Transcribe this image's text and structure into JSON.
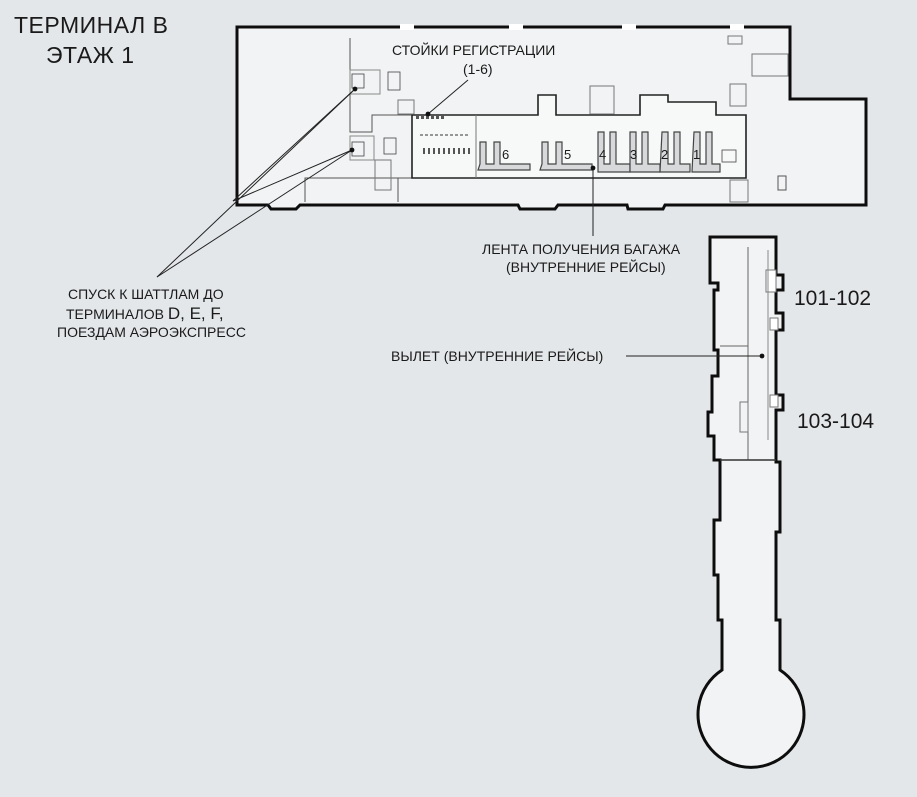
{
  "map": {
    "title_line1": "ТЕРМИНАЛ B",
    "title_line2": "ЭТАЖ 1"
  },
  "labels": {
    "checkin_line1": "СТОЙКИ РЕГИСТРАЦИИ",
    "checkin_line2": "(1-6)",
    "baggage_line1": "ЛЕНТА ПОЛУЧЕНИЯ БАГАЖА",
    "baggage_line2": "(ВНУТРЕННИЕ РЕЙСЫ)",
    "shuttle_line1": "СПУСК К ШАТТЛАМ ДО",
    "shuttle_line2_text": "ТЕРМИНАЛОВ ",
    "shuttle_line2_letters": "D, E, F,",
    "shuttle_line3": "ПОЕЗДАМ АЭРОЭКСПРЕСС",
    "departure": "ВЫЛЕТ (ВНУТРЕННИЕ РЕЙСЫ)"
  },
  "gates": {
    "gate_101_102": "101-102",
    "gate_103_104": "103-104"
  },
  "baggage_belts": [
    "6",
    "5",
    "4",
    "3",
    "2",
    "1"
  ],
  "colors": {
    "background": "#e4e7ea",
    "building_fill": "#f2f3f4",
    "wall": "#0d0d0d"
  }
}
